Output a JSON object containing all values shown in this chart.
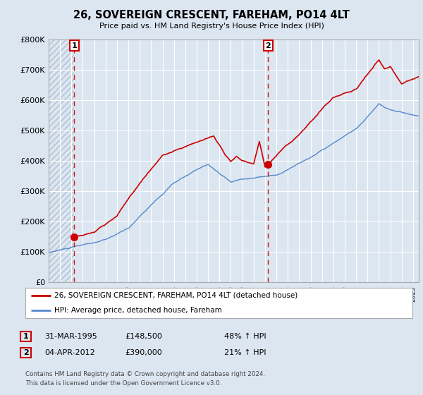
{
  "title": "26, SOVEREIGN CRESCENT, FAREHAM, PO14 4LT",
  "subtitle": "Price paid vs. HM Land Registry's House Price Index (HPI)",
  "property_label": "26, SOVEREIGN CRESCENT, FAREHAM, PO14 4LT (detached house)",
  "hpi_label": "HPI: Average price, detached house, Fareham",
  "sale1_date": "31-MAR-1995",
  "sale1_price": 148500,
  "sale1_hpi": "48% ↑ HPI",
  "sale2_date": "04-APR-2012",
  "sale2_price": 390000,
  "sale2_hpi": "21% ↑ HPI",
  "copyright_text": "Contains HM Land Registry data © Crown copyright and database right 2024.\nThis data is licensed under the Open Government Licence v3.0.",
  "property_color": "#cc0000",
  "hpi_color": "#5588cc",
  "background_color": "#dce6f1",
  "plot_bg_color": "#dce6f1",
  "hatch_color": "#b0bfd0",
  "grid_color": "#ffffff",
  "vline_color": "#cc0000",
  "ylim": [
    0,
    800000
  ],
  "yticks": [
    0,
    100000,
    200000,
    300000,
    400000,
    500000,
    600000,
    700000,
    800000
  ],
  "ytick_labels": [
    "£0",
    "£100K",
    "£200K",
    "£300K",
    "£400K",
    "£500K",
    "£600K",
    "£700K",
    "£800K"
  ],
  "sale1_x": 1995.25,
  "sale2_x": 2012.27,
  "xmin": 1993,
  "xmax": 2025.5
}
